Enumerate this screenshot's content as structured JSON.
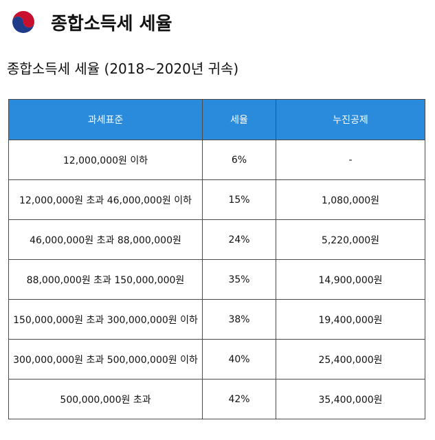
{
  "header": {
    "title": "종합소득세 세율",
    "emblem_icon": "korea-government-emblem-icon",
    "colors": {
      "red": "#c8102e",
      "blue": "#1f3c88"
    }
  },
  "subtitle": "종합소득세 세율 (2018~2020년 귀속)",
  "table": {
    "header_color": "#2a8bdc",
    "columns": [
      "과세표준",
      "세율",
      "누진공제"
    ],
    "rows": [
      [
        "12,000,000원 이하",
        "6%",
        "-"
      ],
      [
        "12,000,000원 초과 46,000,000원 이하",
        "15%",
        "1,080,000원"
      ],
      [
        "46,000,000원 초과 88,000,000원",
        "24%",
        "5,220,000원"
      ],
      [
        "88,000,000원 초과 150,000,000원",
        "35%",
        "14,900,000원"
      ],
      [
        "150,000,000원 초과 300,000,000원 이하",
        "38%",
        "19,400,000원"
      ],
      [
        "300,000,000원 초과 500,000,000원 이하",
        "40%",
        "25,400,000원"
      ],
      [
        "500,000,000원 초과",
        "42%",
        "35,400,000원"
      ]
    ]
  }
}
